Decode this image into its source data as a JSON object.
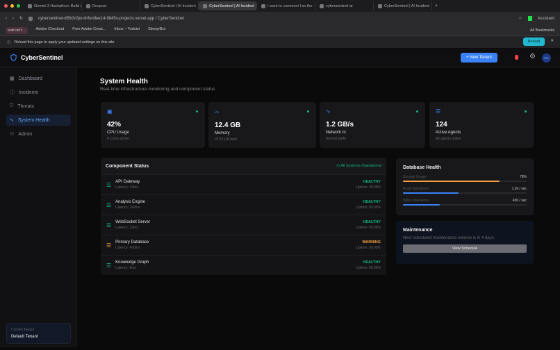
{
  "browser": {
    "tabs": [
      "Gemini 3 Hackathon: Build w",
      "Devpost",
      "CyberSentinel | AI Incident",
      "CyberSentinel | AI Incident",
      "I want to comment I so the",
      "cybersentinel-ai",
      "CyberSentinel | AI Incident"
    ],
    "active_tab": 3,
    "url": "cybersentinel-di5b3cfpo-linfordlee14-9845s-projects.vercel.app / CyberSentinel",
    "assistant": "Assistant",
    "bookmarks": [
      "wait isn't...",
      "Adobe Checkout",
      "Free Adobe Creat...",
      "Inbox – Todoist",
      "SleepyBot"
    ],
    "all_bookmarks": "All Bookmarks",
    "infobar": "Reload this page to apply your updated settings on this site",
    "reload": "Reload"
  },
  "app": {
    "name": "CyberSentinel",
    "new_tenant": "+ New Tenant",
    "avatar": "HA",
    "accent": "#3b82f6"
  },
  "sidebar": {
    "items": [
      {
        "label": "Dashboard",
        "icon": "grid"
      },
      {
        "label": "Incidents",
        "icon": "alert-circle"
      },
      {
        "label": "Threats",
        "icon": "shield"
      },
      {
        "label": "System Health",
        "icon": "activity",
        "active": true
      },
      {
        "label": "Admin",
        "icon": "users"
      }
    ],
    "tenant_label": "Current Tenant",
    "tenant": "Default Tenant"
  },
  "page": {
    "title": "System Health",
    "subtitle": "Real-time infrastructure monitoring and component status"
  },
  "metrics": [
    {
      "value": "42%",
      "label": "CPU Usage",
      "hint": "8 Cores active",
      "icon": "cpu"
    },
    {
      "value": "12.4 GB",
      "label": "Memory",
      "hint": "Of 32 GB total",
      "icon": "hard-drive"
    },
    {
      "value": "1.2 GB/s",
      "label": "Network In",
      "hint": "Normal traffic",
      "icon": "activity"
    },
    {
      "value": "124",
      "label": "Active Agents",
      "hint": "All agents online",
      "icon": "server"
    }
  ],
  "components": {
    "title": "Component Status",
    "status": "All Systems Operational",
    "items": [
      {
        "name": "API Gateway",
        "latency": "Latency: 24ms",
        "status": "HEALTHY",
        "uptime": "Uptime: 99.99%"
      },
      {
        "name": "Analysis Engine",
        "latency": "Latency: 142ms",
        "status": "HEALTHY",
        "uptime": "Uptime: 99.95%"
      },
      {
        "name": "WebSocket Server",
        "latency": "Latency: 12ms",
        "status": "HEALTHY",
        "uptime": "Uptime: 99.98%"
      },
      {
        "name": "Primary Database",
        "latency": "Latency: 450ms",
        "status": "WARNING",
        "uptime": "Uptime: 99.90%"
      },
      {
        "name": "Knowledge Graph",
        "latency": "Latency: 8ms",
        "status": "HEALTHY",
        "uptime": "Uptime: 99.99%"
      }
    ]
  },
  "db_health": {
    "title": "Database Health",
    "metrics": [
      {
        "label": "Storage Usage",
        "value": "78%",
        "fill": 78,
        "color": "#f59e42"
      },
      {
        "label": "Read Operations",
        "value": "1.2k / sec",
        "fill": 45,
        "color": "#3b82f6"
      },
      {
        "label": "Write Operations",
        "value": "450 / sec",
        "fill": 30,
        "color": "#3b82f6"
      }
    ]
  },
  "maintenance": {
    "title": "Maintenance",
    "text": "Next scheduled maintenance window is in 4 days.",
    "button": "View Schedule"
  },
  "colors": {
    "healthy": "#10b981",
    "warning": "#f59e42"
  }
}
